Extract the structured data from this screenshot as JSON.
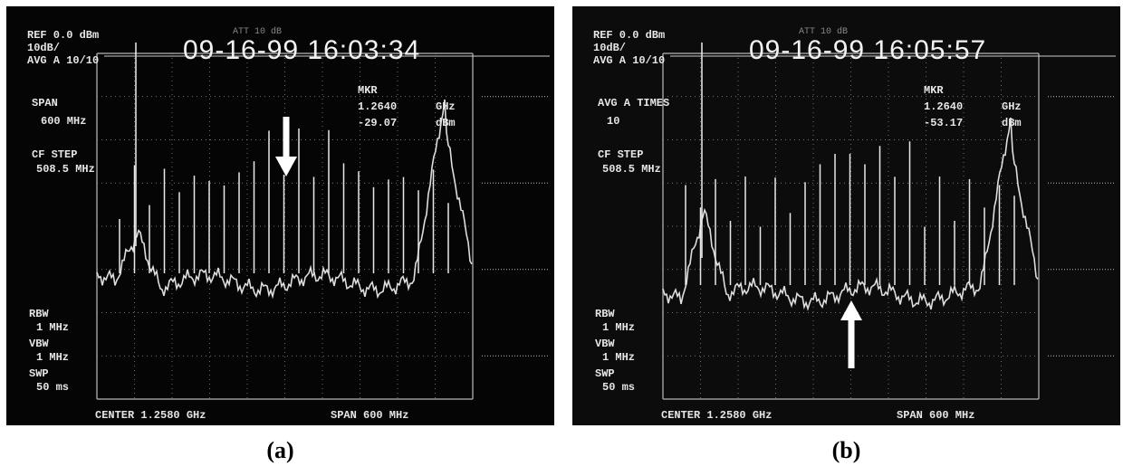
{
  "panels": [
    {
      "caption": "(a)",
      "screen": {
        "header": [
          "REF 0.0 dBm",
          "10dB/",
          "AVG A 10/10"
        ],
        "attenuation": "ATT 10 dB",
        "timestamp": "09-16-99 16:03:34",
        "marker": {
          "label": "MKR",
          "frequency": "1.2640",
          "frequency_unit": "GHz",
          "level": "-29.07",
          "level_unit": "dBm"
        },
        "left_settings": [
          "SPAN",
          "600 MHz",
          "CF STEP",
          "508.5 MHz"
        ],
        "bandwidth": [
          "RBW",
          "1 MHz",
          "VBW",
          "1 MHz",
          "SWP",
          "50 ms"
        ],
        "center": "CENTER 1.2580 GHz",
        "span": "SPAN 600 MHz"
      }
    },
    {
      "caption": "(b)",
      "screen": {
        "header": [
          "REF 0.0 dBm",
          "10dB/",
          "AVG A 10/10"
        ],
        "attenuation": "ATT 10 dB",
        "timestamp": "09-16-99 16:05:57",
        "marker": {
          "label": "MKR",
          "frequency": "1.2640",
          "frequency_unit": "GHz",
          "level": "-53.17",
          "level_unit": "dBm"
        },
        "left_settings": [
          "AVG A TIMES",
          "10",
          "CF STEP",
          "508.5 MHz"
        ],
        "bandwidth": [
          "RBW",
          "1 MHz",
          "VBW",
          "1 MHz",
          "SWP",
          "50 ms"
        ],
        "center": "CENTER 1.2580 GHz",
        "span": "SPAN 600 MHz"
      }
    }
  ]
}
